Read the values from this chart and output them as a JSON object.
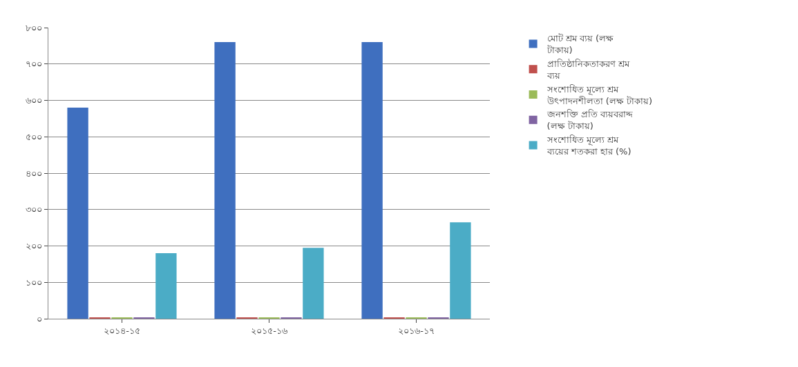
{
  "chart_data": {
    "type": "bar",
    "categories": [
      "২০১৪-১৫",
      "২০১৫-১৬",
      "২০১৬-১৭"
    ],
    "series": [
      {
        "name": "মোট শ্রম ব্যয় (লক্ষ টাকায়)",
        "color": "#3f6fbf",
        "values": [
          580,
          760,
          760
        ]
      },
      {
        "name": "প্রাতিষ্ঠানিকতাকরণ শ্রম ব্যয়",
        "color": "#c0504d",
        "values": [
          3,
          3,
          3
        ]
      },
      {
        "name": "সংশোধিত মূল্যে শ্রম উৎপাদনশীলতা (লক্ষ টাকায়)",
        "color": "#9bbb59",
        "values": [
          3,
          3,
          3
        ]
      },
      {
        "name": "জনশক্তি প্রতি ব্যয়বরাদ্দ (লক্ষ টাকায়)",
        "color": "#8064a2",
        "values": [
          3,
          3,
          3
        ]
      },
      {
        "name": "সংশোধিত মূল্যে শ্রম ব্যয়ের শতকরা হার (%)",
        "color": "#4bacc6",
        "values": [
          180,
          195,
          265
        ]
      }
    ],
    "ylim": [
      0,
      800
    ],
    "yticks": [
      {
        "value": 0,
        "label": "০"
      },
      {
        "value": 100,
        "label": "১০০"
      },
      {
        "value": 200,
        "label": "২০০"
      },
      {
        "value": 300,
        "label": "৩০০"
      },
      {
        "value": 400,
        "label": "৪০০"
      },
      {
        "value": 500,
        "label": "৫০০"
      },
      {
        "value": 600,
        "label": "৬০০"
      },
      {
        "value": 700,
        "label": "৭০০"
      },
      {
        "value": 800,
        "label": "৮০০"
      }
    ],
    "grid": "y",
    "legend": "right"
  }
}
